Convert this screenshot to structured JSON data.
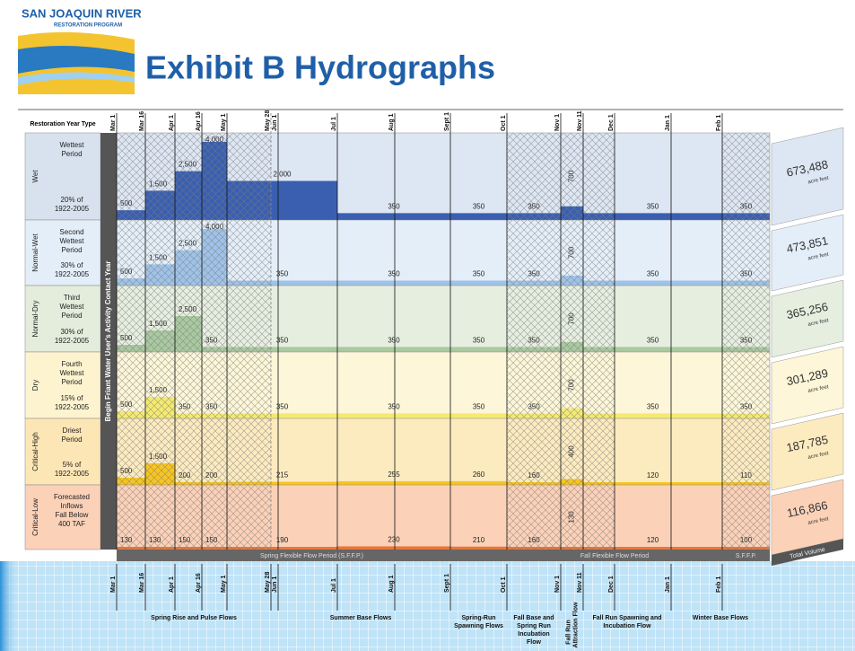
{
  "header": {
    "logo_line1": "SAN JOAQUIN RIVER",
    "logo_line2": "RESTORATION PROGRAM",
    "title": "Exhibit B Hydrographs"
  },
  "table": {
    "year_type_header": "Restoration Year Type",
    "contract_year_label": "Begin Friant Water User's Activity Contact Year",
    "dates": [
      "Mar 1",
      "Mar 16",
      "Apr 1",
      "Apr 16",
      "May 1",
      "May 28",
      "Jun 1",
      "Jul 1",
      "Aug 1",
      "Sept 1",
      "Oct 1",
      "Nov 1",
      "Nov 11",
      "Dec 1",
      "Jan 1",
      "Feb 1"
    ],
    "rows": [
      {
        "year_type": "Wet",
        "period": "Wettest Period",
        "share": "20% of 1922-2005",
        "flows": [
          500,
          1500,
          2500,
          4000,
          2000,
          350,
          350,
          350,
          700,
          350,
          350
        ],
        "flow_labels": [
          "500",
          "1,500",
          "2,500",
          "4,000",
          "2,000",
          "350",
          "350",
          "350",
          "700",
          "350",
          "350"
        ],
        "volume": "673,488",
        "unit": "acre feet"
      },
      {
        "year_type": "Normal-Wet",
        "period": "Second Wettest Period",
        "share": "30% of 1922-2005",
        "flows": [
          500,
          1500,
          2500,
          4000,
          350,
          350,
          350,
          350,
          700,
          350,
          350
        ],
        "flow_labels": [
          "500",
          "1,500",
          "2,500",
          "4,000",
          "350",
          "350",
          "350",
          "350",
          "700",
          "350",
          "350"
        ],
        "volume": "473,851",
        "unit": "acre feet"
      },
      {
        "year_type": "Normal-Dry",
        "period": "Third Wettest Period",
        "share": "30% of 1922-2005",
        "flows": [
          500,
          1500,
          2500,
          350,
          350,
          350,
          350,
          350,
          700,
          350,
          350
        ],
        "flow_labels": [
          "500",
          "1,500",
          "2,500",
          "350",
          "350",
          "350",
          "350",
          "350",
          "700",
          "350",
          "350"
        ],
        "volume": "365,256",
        "unit": "acre feet"
      },
      {
        "year_type": "Dry",
        "period": "Fourth Wettest Period",
        "share": "15% of 1922-2005",
        "flows": [
          500,
          1500,
          350,
          350,
          350,
          350,
          350,
          350,
          700,
          350,
          350
        ],
        "flow_labels": [
          "500",
          "1,500",
          "350",
          "350",
          "350",
          "350",
          "350",
          "350",
          "700",
          "350",
          "350"
        ],
        "volume": "301,289",
        "unit": "acre feet"
      },
      {
        "year_type": "Critical-High",
        "period": "Driest Period",
        "share": "5% of 1922-2005",
        "flows": [
          500,
          1500,
          200,
          200,
          215,
          255,
          260,
          160,
          400,
          120,
          110
        ],
        "flow_labels": [
          "500",
          "1,500",
          "200",
          "200",
          "215",
          "255",
          "260",
          "160",
          "400",
          "120",
          "110"
        ],
        "volume": "187,785",
        "unit": "acre feet"
      },
      {
        "year_type": "Critical-Low",
        "period": "Forecasted Inflows Fall Below 400 TAF",
        "flows": [
          130,
          130,
          150,
          150,
          190,
          230,
          210,
          160,
          130,
          120,
          100
        ],
        "volume": "116,866",
        "unit": "acre feet"
      }
    ],
    "total_volume_label": "Total Volume",
    "flexible_periods": [
      "Spring Flexible Flow Period (S.F.F.P.)",
      "Fall Flexible Flow Period",
      "S.F.F.P."
    ],
    "flow_periods": [
      "Spring Rise and Pulse Flows",
      "Summer Base Flows",
      "Spring-Run Spawning Flows",
      "Fall Base and Spring Run Incubation Flow",
      "Fall Run Attraction Flow",
      "Fall Run Spawning and Incubation Flow",
      "Winter Base Flows"
    ]
  }
}
